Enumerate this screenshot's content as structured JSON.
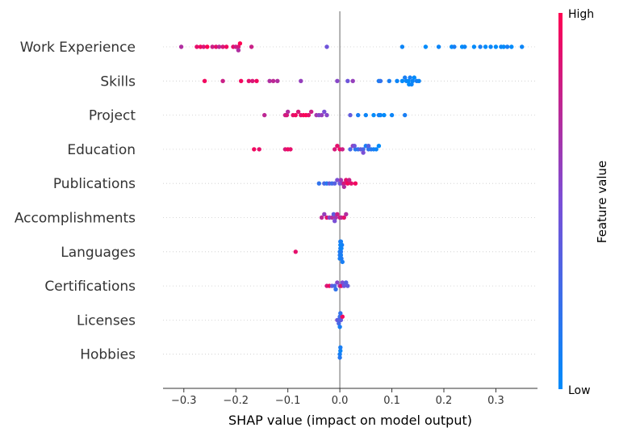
{
  "chart_data": {
    "type": "scatter",
    "subtype": "shap-beeswarm",
    "xlabel": "SHAP value (impact on model output)",
    "xlim": [
      -0.34,
      0.38
    ],
    "xticks": [
      {
        "value": -0.3,
        "label": "−0.3"
      },
      {
        "value": -0.2,
        "label": "−0.2"
      },
      {
        "value": -0.1,
        "label": "−0.1"
      },
      {
        "value": 0.0,
        "label": "0.0"
      },
      {
        "value": 0.1,
        "label": "0.1"
      },
      {
        "value": 0.2,
        "label": "0.2"
      },
      {
        "value": 0.3,
        "label": "0.3"
      }
    ],
    "zero_line": true,
    "colorbar": {
      "title": "Feature value",
      "high_label": "High",
      "low_label": "Low",
      "high_color": "#ff0052",
      "low_color": "#008bfb"
    },
    "features": [
      {
        "name": "Work Experience",
        "points": [
          {
            "x": -0.305,
            "v": 0.7
          },
          {
            "x": -0.275,
            "v": 0.9
          },
          {
            "x": -0.268,
            "v": 0.95
          },
          {
            "x": -0.262,
            "v": 0.85
          },
          {
            "x": -0.255,
            "v": 1.0
          },
          {
            "x": -0.245,
            "v": 0.8
          },
          {
            "x": -0.238,
            "v": 0.9
          },
          {
            "x": -0.232,
            "v": 0.75
          },
          {
            "x": -0.225,
            "v": 0.85
          },
          {
            "x": -0.218,
            "v": 0.95
          },
          {
            "x": -0.205,
            "v": 0.9
          },
          {
            "x": -0.2,
            "v": 0.8
          },
          {
            "x": -0.195,
            "v": 0.85
          },
          {
            "x": -0.192,
            "v": 1.0
          },
          {
            "x": -0.195,
            "v": 0.7
          },
          {
            "x": -0.17,
            "v": 0.8
          },
          {
            "x": -0.025,
            "v": 0.45
          },
          {
            "x": 0.12,
            "v": 0.05
          },
          {
            "x": 0.165,
            "v": 0.0
          },
          {
            "x": 0.19,
            "v": 0.05
          },
          {
            "x": 0.215,
            "v": 0.0
          },
          {
            "x": 0.22,
            "v": 0.1
          },
          {
            "x": 0.235,
            "v": 0.0
          },
          {
            "x": 0.24,
            "v": 0.05
          },
          {
            "x": 0.258,
            "v": 0.0
          },
          {
            "x": 0.27,
            "v": 0.1
          },
          {
            "x": 0.28,
            "v": 0.0
          },
          {
            "x": 0.29,
            "v": 0.05
          },
          {
            "x": 0.3,
            "v": 0.0
          },
          {
            "x": 0.31,
            "v": 0.05
          },
          {
            "x": 0.315,
            "v": 0.0
          },
          {
            "x": 0.322,
            "v": 0.1
          },
          {
            "x": 0.33,
            "v": 0.0
          },
          {
            "x": 0.35,
            "v": 0.05
          }
        ]
      },
      {
        "name": "Skills",
        "points": [
          {
            "x": -0.26,
            "v": 0.95
          },
          {
            "x": -0.225,
            "v": 0.8
          },
          {
            "x": -0.19,
            "v": 0.95
          },
          {
            "x": -0.175,
            "v": 0.9
          },
          {
            "x": -0.168,
            "v": 0.85
          },
          {
            "x": -0.16,
            "v": 0.95
          },
          {
            "x": -0.135,
            "v": 0.7
          },
          {
            "x": -0.128,
            "v": 0.75
          },
          {
            "x": -0.12,
            "v": 0.7
          },
          {
            "x": -0.075,
            "v": 0.6
          },
          {
            "x": -0.005,
            "v": 0.55
          },
          {
            "x": 0.015,
            "v": 0.45
          },
          {
            "x": 0.025,
            "v": 0.6
          },
          {
            "x": 0.075,
            "v": 0.1
          },
          {
            "x": 0.078,
            "v": 0.2
          },
          {
            "x": 0.095,
            "v": 0.1
          },
          {
            "x": 0.11,
            "v": 0.05
          },
          {
            "x": 0.12,
            "v": 0.0
          },
          {
            "x": 0.125,
            "v": 0.1
          },
          {
            "x": 0.128,
            "v": 0.05
          },
          {
            "x": 0.132,
            "v": 0.0
          },
          {
            "x": 0.135,
            "v": 0.1
          },
          {
            "x": 0.14,
            "v": 0.05
          },
          {
            "x": 0.143,
            "v": 0.0
          },
          {
            "x": 0.148,
            "v": 0.1
          },
          {
            "x": 0.152,
            "v": 0.05
          },
          {
            "x": 0.133,
            "v": 0.0
          },
          {
            "x": 0.138,
            "v": 0.05
          }
        ]
      },
      {
        "name": "Project",
        "points": [
          {
            "x": -0.145,
            "v": 0.75
          },
          {
            "x": -0.105,
            "v": 0.8
          },
          {
            "x": -0.102,
            "v": 0.85
          },
          {
            "x": -0.1,
            "v": 0.7
          },
          {
            "x": -0.09,
            "v": 0.9
          },
          {
            "x": -0.085,
            "v": 0.95
          },
          {
            "x": -0.08,
            "v": 0.85
          },
          {
            "x": -0.075,
            "v": 0.9
          },
          {
            "x": -0.07,
            "v": 0.95
          },
          {
            "x": -0.065,
            "v": 1.0
          },
          {
            "x": -0.06,
            "v": 0.9
          },
          {
            "x": -0.055,
            "v": 0.8
          },
          {
            "x": -0.045,
            "v": 0.65
          },
          {
            "x": -0.04,
            "v": 0.55
          },
          {
            "x": -0.035,
            "v": 0.6
          },
          {
            "x": -0.03,
            "v": 0.5
          },
          {
            "x": -0.025,
            "v": 0.55
          },
          {
            "x": 0.02,
            "v": 0.4
          },
          {
            "x": 0.035,
            "v": 0.1
          },
          {
            "x": 0.05,
            "v": 0.05
          },
          {
            "x": 0.065,
            "v": 0.0
          },
          {
            "x": 0.075,
            "v": 0.1
          },
          {
            "x": 0.078,
            "v": 0.05
          },
          {
            "x": 0.085,
            "v": 0.0
          },
          {
            "x": 0.1,
            "v": 0.05
          },
          {
            "x": 0.125,
            "v": 0.1
          }
        ]
      },
      {
        "name": "Education",
        "points": [
          {
            "x": -0.165,
            "v": 0.95
          },
          {
            "x": -0.155,
            "v": 0.9
          },
          {
            "x": -0.105,
            "v": 0.85
          },
          {
            "x": -0.1,
            "v": 0.95
          },
          {
            "x": -0.095,
            "v": 0.9
          },
          {
            "x": -0.01,
            "v": 0.85
          },
          {
            "x": -0.005,
            "v": 0.9
          },
          {
            "x": 0.0,
            "v": 0.95
          },
          {
            "x": 0.005,
            "v": 0.8
          },
          {
            "x": 0.02,
            "v": 0.3
          },
          {
            "x": 0.025,
            "v": 0.6
          },
          {
            "x": 0.03,
            "v": 0.15
          },
          {
            "x": 0.035,
            "v": 0.2
          },
          {
            "x": 0.04,
            "v": 0.4
          },
          {
            "x": 0.045,
            "v": 0.3
          },
          {
            "x": 0.05,
            "v": 0.1
          },
          {
            "x": 0.055,
            "v": 0.2
          },
          {
            "x": 0.06,
            "v": 0.15
          },
          {
            "x": 0.065,
            "v": 0.1
          },
          {
            "x": 0.07,
            "v": 0.05
          },
          {
            "x": 0.075,
            "v": 0.0
          },
          {
            "x": 0.045,
            "v": 0.5
          },
          {
            "x": 0.055,
            "v": 0.35
          },
          {
            "x": 0.028,
            "v": 0.45
          }
        ]
      },
      {
        "name": "Publications",
        "points": [
          {
            "x": -0.04,
            "v": 0.2
          },
          {
            "x": -0.03,
            "v": 0.3
          },
          {
            "x": -0.025,
            "v": 0.15
          },
          {
            "x": -0.02,
            "v": 0.4
          },
          {
            "x": -0.015,
            "v": 0.25
          },
          {
            "x": -0.01,
            "v": 0.35
          },
          {
            "x": -0.005,
            "v": 0.5
          },
          {
            "x": 0.0,
            "v": 0.45
          },
          {
            "x": 0.005,
            "v": 0.6
          },
          {
            "x": 0.008,
            "v": 0.85
          },
          {
            "x": 0.012,
            "v": 0.9
          },
          {
            "x": 0.015,
            "v": 0.95
          },
          {
            "x": 0.018,
            "v": 0.8
          },
          {
            "x": 0.022,
            "v": 0.9
          },
          {
            "x": 0.03,
            "v": 0.95
          },
          {
            "x": 0.008,
            "v": 0.7
          },
          {
            "x": 0.002,
            "v": 0.65
          }
        ]
      },
      {
        "name": "Accomplishments",
        "points": [
          {
            "x": -0.035,
            "v": 0.75
          },
          {
            "x": -0.03,
            "v": 0.6
          },
          {
            "x": -0.025,
            "v": 0.9
          },
          {
            "x": -0.02,
            "v": 0.55
          },
          {
            "x": -0.015,
            "v": 0.7
          },
          {
            "x": -0.012,
            "v": 0.4
          },
          {
            "x": -0.008,
            "v": 0.65
          },
          {
            "x": -0.005,
            "v": 0.8
          },
          {
            "x": 0.0,
            "v": 0.85
          },
          {
            "x": 0.003,
            "v": 0.75
          },
          {
            "x": 0.008,
            "v": 0.9
          },
          {
            "x": 0.012,
            "v": 0.7
          },
          {
            "x": -0.01,
            "v": 0.5
          }
        ]
      },
      {
        "name": "Languages",
        "points": [
          {
            "x": -0.085,
            "v": 0.9
          },
          {
            "x": 0.0,
            "v": 0.1
          },
          {
            "x": 0.002,
            "v": 0.15
          },
          {
            "x": 0.001,
            "v": 0.1
          },
          {
            "x": 0.003,
            "v": 0.05
          },
          {
            "x": 0.0,
            "v": 0.15
          },
          {
            "x": 0.002,
            "v": 0.1
          },
          {
            "x": 0.004,
            "v": 0.1
          },
          {
            "x": 0.001,
            "v": 0.05
          },
          {
            "x": 0.003,
            "v": 0.15
          },
          {
            "x": 0.0,
            "v": 0.1
          },
          {
            "x": 0.002,
            "v": 0.05
          },
          {
            "x": 0.001,
            "v": 0.1
          },
          {
            "x": 0.005,
            "v": 0.1
          }
        ]
      },
      {
        "name": "Certifications",
        "points": [
          {
            "x": -0.025,
            "v": 0.85
          },
          {
            "x": -0.02,
            "v": 0.95
          },
          {
            "x": -0.015,
            "v": 0.4
          },
          {
            "x": -0.01,
            "v": 0.3
          },
          {
            "x": -0.005,
            "v": 0.55
          },
          {
            "x": 0.0,
            "v": 0.7
          },
          {
            "x": 0.003,
            "v": 0.9
          },
          {
            "x": 0.005,
            "v": 0.5
          },
          {
            "x": 0.008,
            "v": 0.45
          },
          {
            "x": 0.012,
            "v": 0.35
          },
          {
            "x": 0.015,
            "v": 0.4
          },
          {
            "x": -0.008,
            "v": 0.2
          }
        ]
      },
      {
        "name": "Licenses",
        "points": [
          {
            "x": -0.005,
            "v": 0.5
          },
          {
            "x": -0.003,
            "v": 0.35
          },
          {
            "x": 0.0,
            "v": 0.25
          },
          {
            "x": 0.002,
            "v": 0.4
          },
          {
            "x": 0.005,
            "v": 0.95
          },
          {
            "x": -0.002,
            "v": 0.3
          },
          {
            "x": 0.001,
            "v": 0.2
          },
          {
            "x": 0.0,
            "v": 0.1
          }
        ]
      },
      {
        "name": "Hobbies",
        "points": [
          {
            "x": 0.0,
            "v": 0.1
          },
          {
            "x": 0.001,
            "v": 0.05
          },
          {
            "x": 0.0,
            "v": 0.15
          },
          {
            "x": 0.001,
            "v": 0.1
          }
        ]
      }
    ]
  }
}
